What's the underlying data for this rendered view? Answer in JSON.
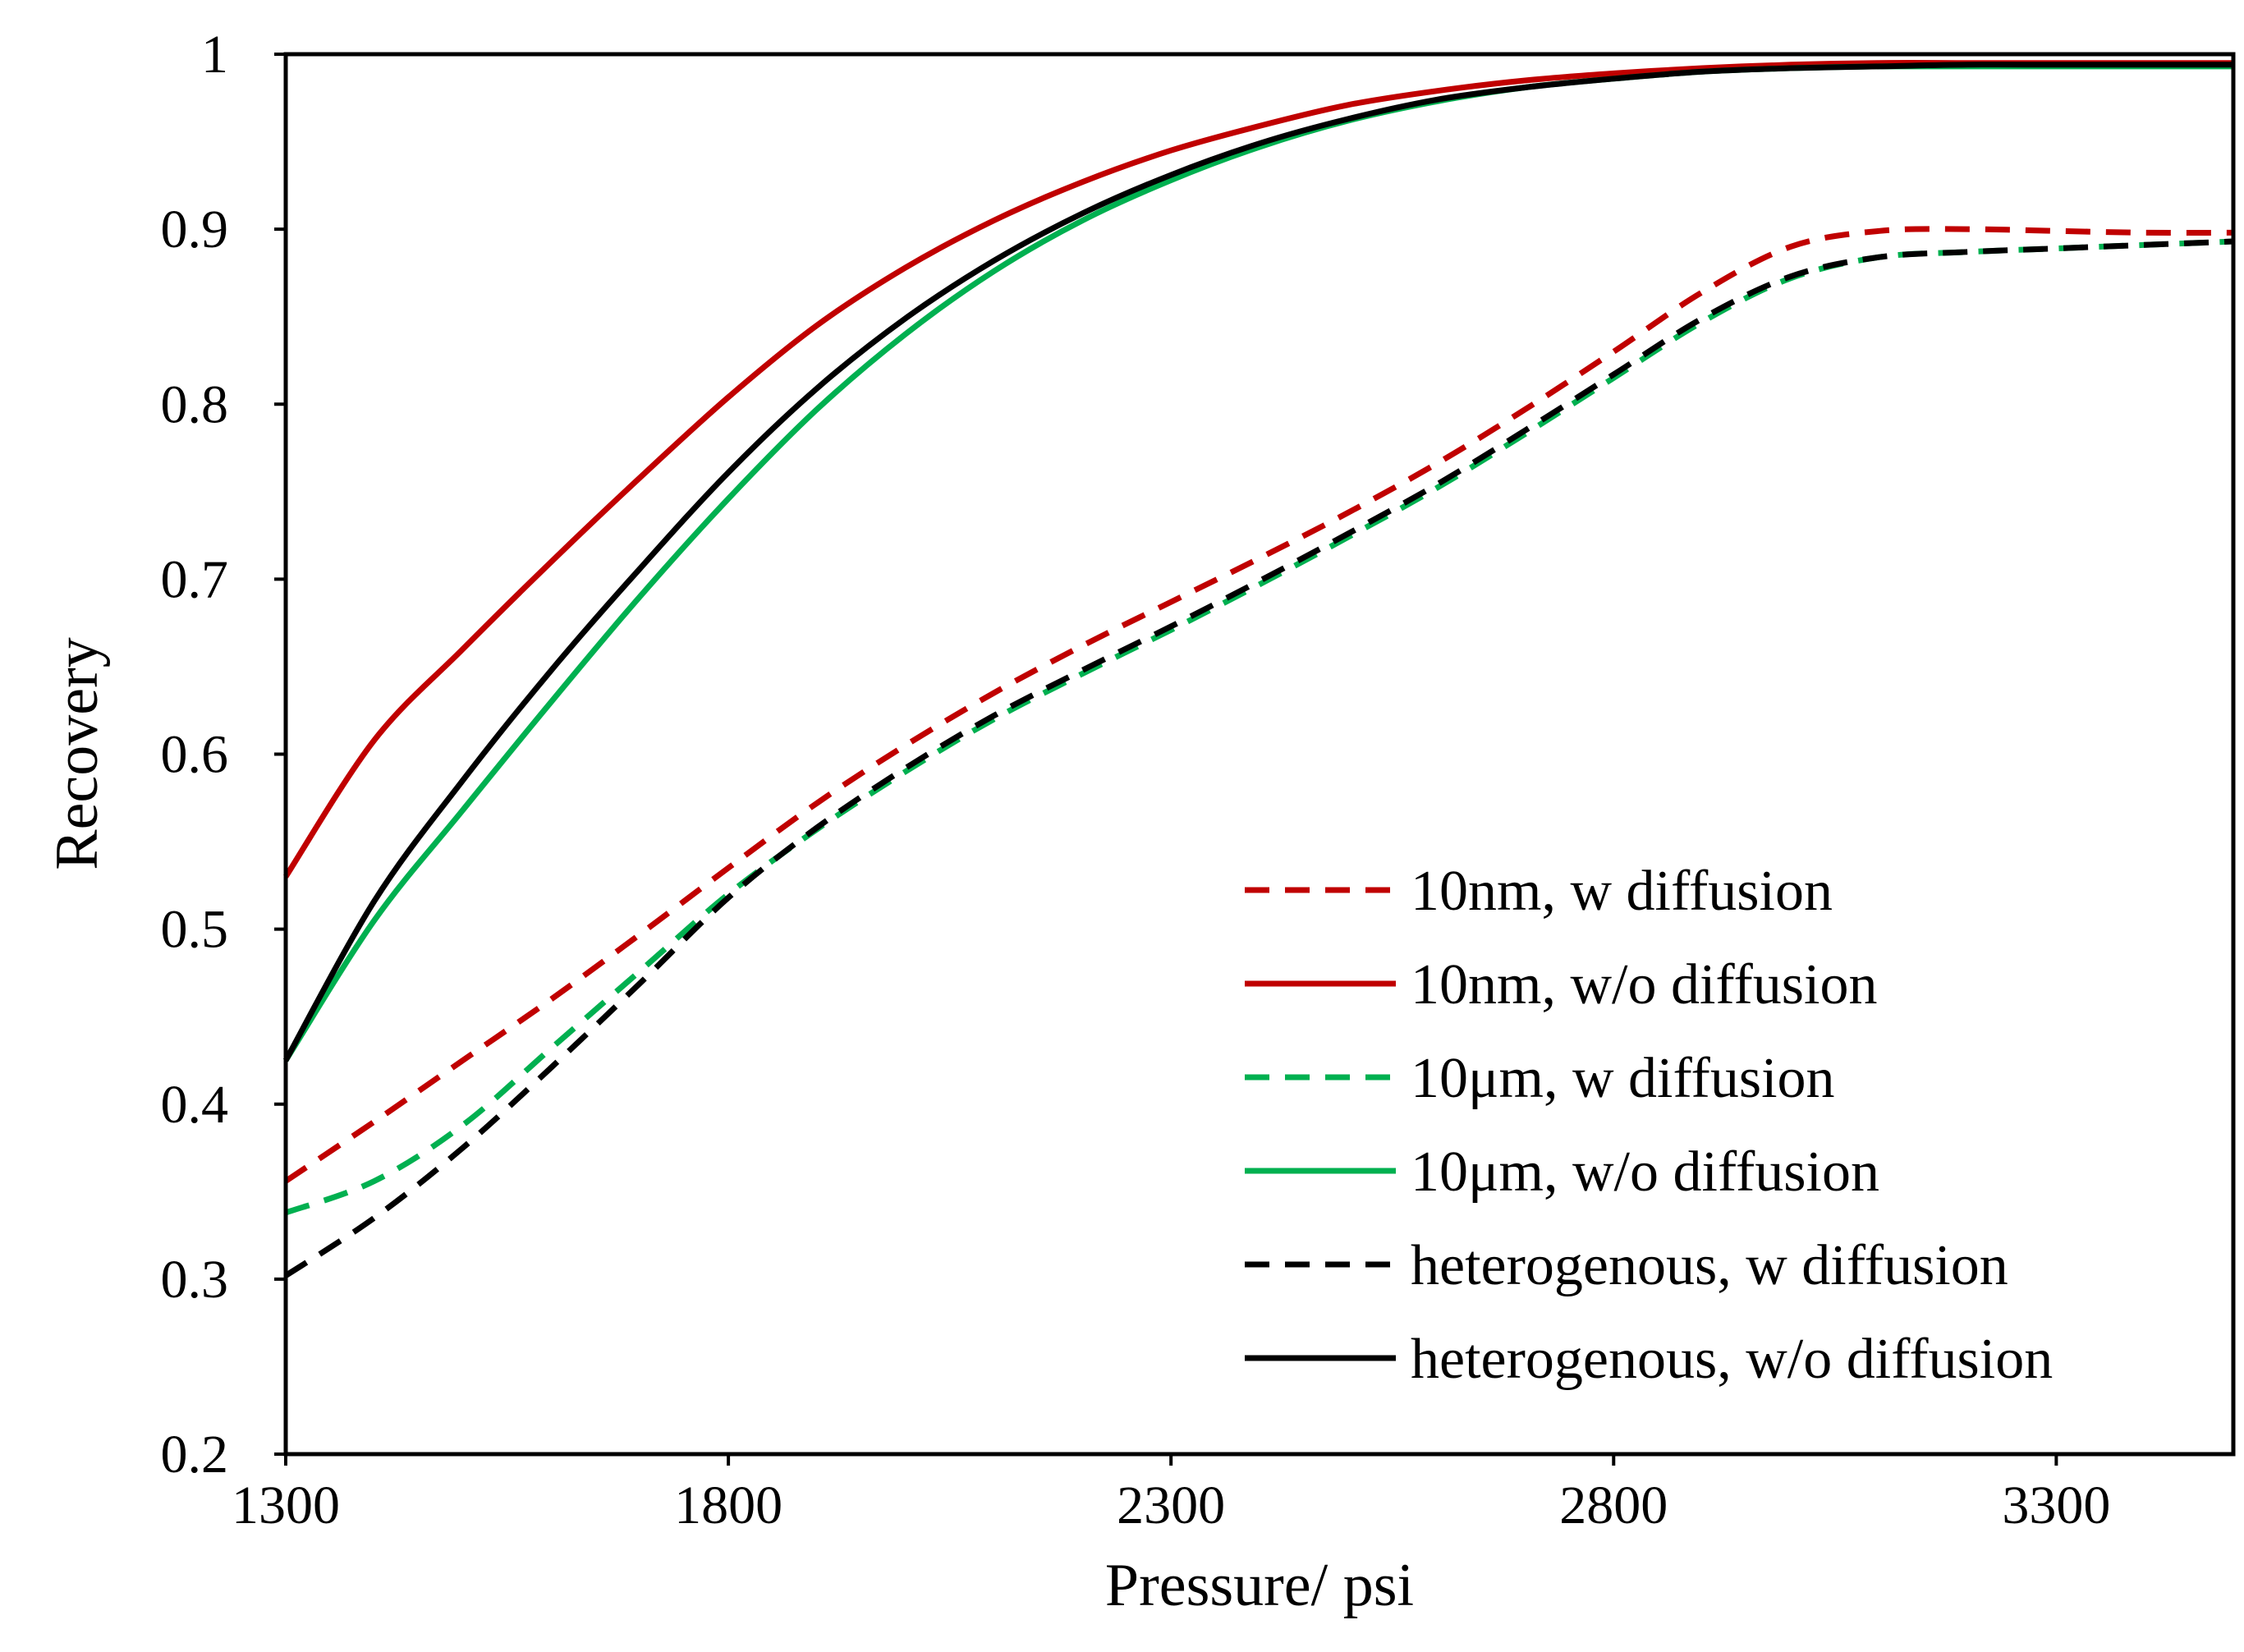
{
  "chart_data": {
    "type": "line",
    "title": "",
    "xlabel": "Pressure/ psi",
    "ylabel": "Recovery",
    "xlim": [
      1300,
      3500
    ],
    "ylim": [
      0.2,
      1.0
    ],
    "xticks": [
      1300,
      1800,
      2300,
      2800,
      3300
    ],
    "xtick_labels": [
      "1300",
      "1800",
      "2300",
      "2800",
      "3300"
    ],
    "yticks": [
      0.2,
      0.3,
      0.4,
      0.5,
      0.6,
      0.7,
      0.8,
      0.9,
      1.0
    ],
    "ytick_labels": [
      "0.2",
      "0.3",
      "0.4",
      "0.5",
      "0.6",
      "0.7",
      "0.8",
      "0.9",
      "1"
    ],
    "grid": false,
    "legend_position": "bottom-right",
    "series": [
      {
        "name": "10nm, w diffusion",
        "color": "#c00000",
        "dash": "dashed",
        "x": [
          1300,
          1400,
          1500,
          1600,
          1700,
          1800,
          1900,
          2000,
          2100,
          2200,
          2300,
          2400,
          2500,
          2600,
          2700,
          2800,
          2900,
          3000,
          3100,
          3200,
          3300,
          3400,
          3500
        ],
        "y": [
          0.356,
          0.39,
          0.425,
          0.46,
          0.497,
          0.535,
          0.572,
          0.605,
          0.635,
          0.662,
          0.687,
          0.712,
          0.738,
          0.766,
          0.797,
          0.83,
          0.864,
          0.89,
          0.899,
          0.9,
          0.899,
          0.898,
          0.898
        ]
      },
      {
        "name": "10nm, w/o diffusion",
        "color": "#c00000",
        "dash": "solid",
        "x": [
          1300,
          1400,
          1500,
          1600,
          1700,
          1800,
          1900,
          2000,
          2100,
          2200,
          2300,
          2400,
          2500,
          2600,
          2700,
          2800,
          2900,
          3000,
          3100,
          3200,
          3300,
          3400,
          3500
        ],
        "y": [
          0.53,
          0.608,
          0.66,
          0.71,
          0.758,
          0.804,
          0.845,
          0.878,
          0.905,
          0.927,
          0.945,
          0.959,
          0.971,
          0.979,
          0.985,
          0.989,
          0.992,
          0.994,
          0.995,
          0.995,
          0.995,
          0.995,
          0.995
        ]
      },
      {
        "name": "10μm, w diffusion",
        "color": "#00b050",
        "dash": "dashed",
        "x": [
          1300,
          1400,
          1500,
          1600,
          1700,
          1800,
          1900,
          2000,
          2100,
          2200,
          2300,
          2400,
          2500,
          2600,
          2700,
          2800,
          2900,
          3000,
          3100,
          3200,
          3300,
          3400,
          3500
        ],
        "y": [
          0.338,
          0.356,
          0.388,
          0.432,
          0.476,
          0.52,
          0.557,
          0.59,
          0.62,
          0.646,
          0.671,
          0.697,
          0.724,
          0.752,
          0.783,
          0.815,
          0.847,
          0.872,
          0.884,
          0.887,
          0.889,
          0.891,
          0.893
        ]
      },
      {
        "name": "10μm, w/o diffusion",
        "color": "#00b050",
        "dash": "solid",
        "x": [
          1300,
          1400,
          1500,
          1600,
          1700,
          1800,
          1900,
          2000,
          2100,
          2200,
          2300,
          2400,
          2500,
          2600,
          2700,
          2800,
          2900,
          3000,
          3100,
          3200,
          3300,
          3400,
          3500
        ],
        "y": [
          0.425,
          0.505,
          0.568,
          0.63,
          0.69,
          0.746,
          0.797,
          0.84,
          0.876,
          0.905,
          0.928,
          0.947,
          0.962,
          0.973,
          0.981,
          0.986,
          0.99,
          0.992,
          0.993,
          0.993,
          0.993,
          0.993,
          0.993
        ]
      },
      {
        "name": "heterogenous, w diffusion",
        "color": "#000000",
        "dash": "dashed",
        "x": [
          1300,
          1400,
          1500,
          1600,
          1700,
          1800,
          1900,
          2000,
          2100,
          2200,
          2300,
          2400,
          2500,
          2600,
          2700,
          2800,
          2900,
          3000,
          3100,
          3200,
          3300,
          3400,
          3500
        ],
        "y": [
          0.302,
          0.335,
          0.375,
          0.421,
          0.469,
          0.518,
          0.558,
          0.592,
          0.622,
          0.648,
          0.673,
          0.699,
          0.726,
          0.754,
          0.785,
          0.817,
          0.849,
          0.873,
          0.884,
          0.887,
          0.889,
          0.891,
          0.893
        ]
      },
      {
        "name": "heterogenous, w/o diffusion",
        "color": "#000000",
        "dash": "solid",
        "x": [
          1300,
          1400,
          1500,
          1600,
          1700,
          1800,
          1900,
          2000,
          2100,
          2200,
          2300,
          2400,
          2500,
          2600,
          2700,
          2800,
          2900,
          3000,
          3100,
          3200,
          3300,
          3400,
          3500
        ],
        "y": [
          0.425,
          0.516,
          0.585,
          0.648,
          0.706,
          0.761,
          0.809,
          0.849,
          0.882,
          0.909,
          0.931,
          0.949,
          0.963,
          0.974,
          0.981,
          0.986,
          0.99,
          0.992,
          0.993,
          0.994,
          0.994,
          0.994,
          0.994
        ]
      }
    ]
  }
}
